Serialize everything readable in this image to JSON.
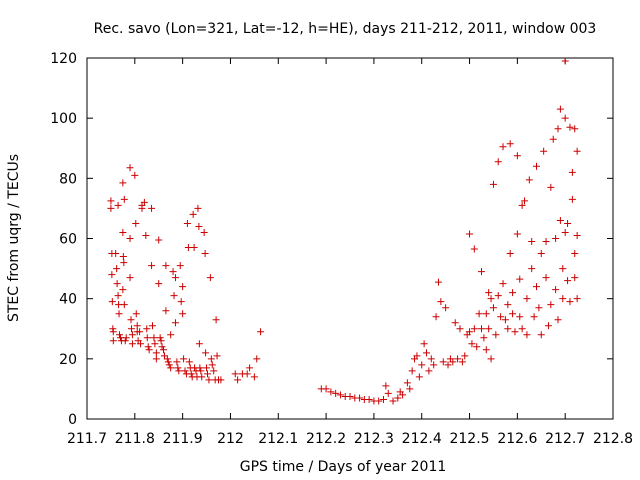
{
  "chart_data": {
    "type": "scatter",
    "title": "Rec. savo (Lon=321, Lat=-12, h=HE), days 211-212, 2011, window 003",
    "xlabel": "GPS time / Days of year 2011",
    "ylabel": "STEC from uqrg / TECUs",
    "xlim": [
      211.7,
      212.8
    ],
    "ylim": [
      0,
      120
    ],
    "xticks": [
      211.7,
      211.8,
      211.9,
      212,
      212.1,
      212.2,
      212.3,
      212.4,
      212.5,
      212.6,
      212.7,
      212.8
    ],
    "xtick_labels": [
      "211.7",
      "211.8",
      "211.9",
      "212",
      "212.1",
      "212.2",
      "212.3",
      "212.4",
      "212.5",
      "212.6",
      "212.7",
      "212.8"
    ],
    "yticks": [
      0,
      20,
      40,
      60,
      80,
      100,
      120
    ],
    "ytick_labels": [
      "0",
      "20",
      "40",
      "60",
      "80",
      "100",
      "120"
    ],
    "grid": false,
    "marker": "+",
    "color": "#cc0000",
    "points": [
      [
        211.75,
        72.5
      ],
      [
        211.75,
        70
      ],
      [
        211.752,
        55
      ],
      [
        211.752,
        48
      ],
      [
        211.753,
        39
      ],
      [
        211.754,
        30
      ],
      [
        211.755,
        29
      ],
      [
        211.755,
        26
      ],
      [
        211.76,
        55
      ],
      [
        211.762,
        50
      ],
      [
        211.763,
        45
      ],
      [
        211.765,
        41
      ],
      [
        211.766,
        38
      ],
      [
        211.767,
        35
      ],
      [
        211.768,
        28
      ],
      [
        211.77,
        27
      ],
      [
        211.772,
        26
      ],
      [
        211.765,
        71
      ],
      [
        211.775,
        78.5
      ],
      [
        211.778,
        73
      ],
      [
        211.775,
        62
      ],
      [
        211.776,
        54
      ],
      [
        211.777,
        52
      ],
      [
        211.775,
        43
      ],
      [
        211.778,
        38
      ],
      [
        211.78,
        26
      ],
      [
        211.782,
        27
      ],
      [
        211.79,
        83.5
      ],
      [
        211.79,
        60
      ],
      [
        211.79,
        47
      ],
      [
        211.792,
        33
      ],
      [
        211.793,
        30
      ],
      [
        211.795,
        28
      ],
      [
        211.795,
        25
      ],
      [
        211.8,
        81
      ],
      [
        211.802,
        65
      ],
      [
        211.803,
        35
      ],
      [
        211.805,
        31
      ],
      [
        211.805,
        29
      ],
      [
        211.807,
        26
      ],
      [
        211.81,
        29
      ],
      [
        211.812,
        25
      ],
      [
        211.815,
        71
      ],
      [
        211.815,
        70
      ],
      [
        211.82,
        72
      ],
      [
        211.823,
        61
      ],
      [
        211.825,
        30
      ],
      [
        211.826,
        27
      ],
      [
        211.828,
        24
      ],
      [
        211.83,
        23
      ],
      [
        211.835,
        70
      ],
      [
        211.835,
        51
      ],
      [
        211.837,
        31
      ],
      [
        211.84,
        27
      ],
      [
        211.842,
        25
      ],
      [
        211.845,
        22
      ],
      [
        211.845,
        20
      ],
      [
        211.85,
        59.5
      ],
      [
        211.85,
        45
      ],
      [
        211.853,
        27
      ],
      [
        211.855,
        26
      ],
      [
        211.857,
        24
      ],
      [
        211.86,
        23
      ],
      [
        211.862,
        21
      ],
      [
        211.865,
        51
      ],
      [
        211.865,
        36
      ],
      [
        211.868,
        20
      ],
      [
        211.87,
        19
      ],
      [
        211.872,
        18
      ],
      [
        211.875,
        28
      ],
      [
        211.875,
        17
      ],
      [
        211.88,
        49
      ],
      [
        211.882,
        41
      ],
      [
        211.885,
        47
      ],
      [
        211.885,
        32
      ],
      [
        211.888,
        19
      ],
      [
        211.89,
        17
      ],
      [
        211.892,
        16
      ],
      [
        211.895,
        51
      ],
      [
        211.897,
        39
      ],
      [
        211.9,
        44
      ],
      [
        211.9,
        35
      ],
      [
        211.902,
        20
      ],
      [
        211.905,
        16
      ],
      [
        211.908,
        15
      ],
      [
        211.91,
        65
      ],
      [
        211.912,
        57
      ],
      [
        211.914,
        19
      ],
      [
        211.916,
        17
      ],
      [
        211.918,
        15
      ],
      [
        211.92,
        14
      ],
      [
        211.922,
        68
      ],
      [
        211.924,
        57
      ],
      [
        211.925,
        17
      ],
      [
        211.928,
        16
      ],
      [
        211.93,
        14
      ],
      [
        211.932,
        70
      ],
      [
        211.934,
        64
      ],
      [
        211.935,
        25
      ],
      [
        211.936,
        17
      ],
      [
        211.938,
        16
      ],
      [
        211.94,
        14
      ],
      [
        211.945,
        62
      ],
      [
        211.947,
        55
      ],
      [
        211.948,
        22
      ],
      [
        211.95,
        17
      ],
      [
        211.952,
        15
      ],
      [
        211.955,
        13
      ],
      [
        211.958,
        47
      ],
      [
        211.96,
        20
      ],
      [
        211.962,
        18
      ],
      [
        211.965,
        16
      ],
      [
        211.968,
        13
      ],
      [
        211.97,
        33
      ],
      [
        211.972,
        21
      ],
      [
        211.975,
        13
      ],
      [
        211.98,
        13
      ],
      [
        212.01,
        15
      ],
      [
        212.015,
        13
      ],
      [
        212.025,
        15
      ],
      [
        212.035,
        15
      ],
      [
        212.04,
        17
      ],
      [
        212.05,
        14
      ],
      [
        212.055,
        20
      ],
      [
        212.063,
        29
      ],
      [
        212.19,
        10
      ],
      [
        212.2,
        10
      ],
      [
        212.21,
        9
      ],
      [
        212.22,
        8.5
      ],
      [
        212.23,
        8
      ],
      [
        212.24,
        7.5
      ],
      [
        212.25,
        7.5
      ],
      [
        212.26,
        7
      ],
      [
        212.27,
        7
      ],
      [
        212.28,
        6.5
      ],
      [
        212.29,
        6.5
      ],
      [
        212.3,
        6
      ],
      [
        212.31,
        6
      ],
      [
        212.32,
        6.5
      ],
      [
        212.325,
        11
      ],
      [
        212.33,
        8.5
      ],
      [
        212.34,
        6
      ],
      [
        212.35,
        7
      ],
      [
        212.355,
        9
      ],
      [
        212.36,
        8
      ],
      [
        212.37,
        12
      ],
      [
        212.375,
        10
      ],
      [
        212.38,
        16
      ],
      [
        212.385,
        20
      ],
      [
        212.39,
        21
      ],
      [
        212.395,
        14
      ],
      [
        212.4,
        18
      ],
      [
        212.405,
        25
      ],
      [
        212.41,
        22
      ],
      [
        212.415,
        16
      ],
      [
        212.42,
        20
      ],
      [
        212.425,
        18
      ],
      [
        212.43,
        34
      ],
      [
        212.435,
        45.5
      ],
      [
        212.44,
        39
      ],
      [
        212.445,
        19
      ],
      [
        212.45,
        37
      ],
      [
        212.455,
        18
      ],
      [
        212.46,
        20
      ],
      [
        212.465,
        19
      ],
      [
        212.47,
        32
      ],
      [
        212.475,
        20
      ],
      [
        212.48,
        30
      ],
      [
        212.485,
        19
      ],
      [
        212.49,
        21
      ],
      [
        212.495,
        28
      ],
      [
        212.5,
        61.5
      ],
      [
        212.5,
        29
      ],
      [
        212.505,
        25
      ],
      [
        212.51,
        56.5
      ],
      [
        212.51,
        30
      ],
      [
        212.515,
        24
      ],
      [
        212.52,
        35
      ],
      [
        212.525,
        49
      ],
      [
        212.525,
        30
      ],
      [
        212.53,
        27
      ],
      [
        212.535,
        35
      ],
      [
        212.535,
        23
      ],
      [
        212.54,
        42
      ],
      [
        212.54,
        30
      ],
      [
        212.545,
        40
      ],
      [
        212.545,
        20
      ],
      [
        212.55,
        78
      ],
      [
        212.55,
        37
      ],
      [
        212.555,
        28
      ],
      [
        212.56,
        85.5
      ],
      [
        212.56,
        41
      ],
      [
        212.565,
        34
      ],
      [
        212.57,
        90.5
      ],
      [
        212.57,
        45
      ],
      [
        212.575,
        33
      ],
      [
        212.58,
        38
      ],
      [
        212.58,
        30
      ],
      [
        212.585,
        91.5
      ],
      [
        212.585,
        55
      ],
      [
        212.59,
        42
      ],
      [
        212.59,
        35
      ],
      [
        212.595,
        29
      ],
      [
        212.6,
        87.5
      ],
      [
        212.6,
        61.5
      ],
      [
        212.605,
        46.5
      ],
      [
        212.605,
        34
      ],
      [
        212.61,
        71
      ],
      [
        212.61,
        30
      ],
      [
        212.615,
        72.5
      ],
      [
        212.62,
        40
      ],
      [
        212.62,
        28
      ],
      [
        212.625,
        79.5
      ],
      [
        212.63,
        59
      ],
      [
        212.63,
        50
      ],
      [
        212.635,
        34
      ],
      [
        212.64,
        84
      ],
      [
        212.64,
        44
      ],
      [
        212.645,
        37
      ],
      [
        212.65,
        55
      ],
      [
        212.65,
        28
      ],
      [
        212.655,
        89
      ],
      [
        212.66,
        59
      ],
      [
        212.66,
        47
      ],
      [
        212.665,
        31
      ],
      [
        212.67,
        77
      ],
      [
        212.67,
        38
      ],
      [
        212.675,
        93
      ],
      [
        212.68,
        60
      ],
      [
        212.68,
        43
      ],
      [
        212.685,
        96.5
      ],
      [
        212.685,
        33
      ],
      [
        212.69,
        103
      ],
      [
        212.69,
        66
      ],
      [
        212.695,
        50
      ],
      [
        212.695,
        40
      ],
      [
        212.7,
        119
      ],
      [
        212.7,
        100
      ],
      [
        212.7,
        62
      ],
      [
        212.705,
        65
      ],
      [
        212.705,
        46
      ],
      [
        212.71,
        97
      ],
      [
        212.71,
        39
      ],
      [
        212.715,
        82
      ],
      [
        212.715,
        73
      ],
      [
        212.72,
        96.5
      ],
      [
        212.72,
        55
      ],
      [
        212.72,
        47
      ],
      [
        212.725,
        89
      ],
      [
        212.725,
        61
      ],
      [
        212.725,
        40
      ]
    ]
  }
}
